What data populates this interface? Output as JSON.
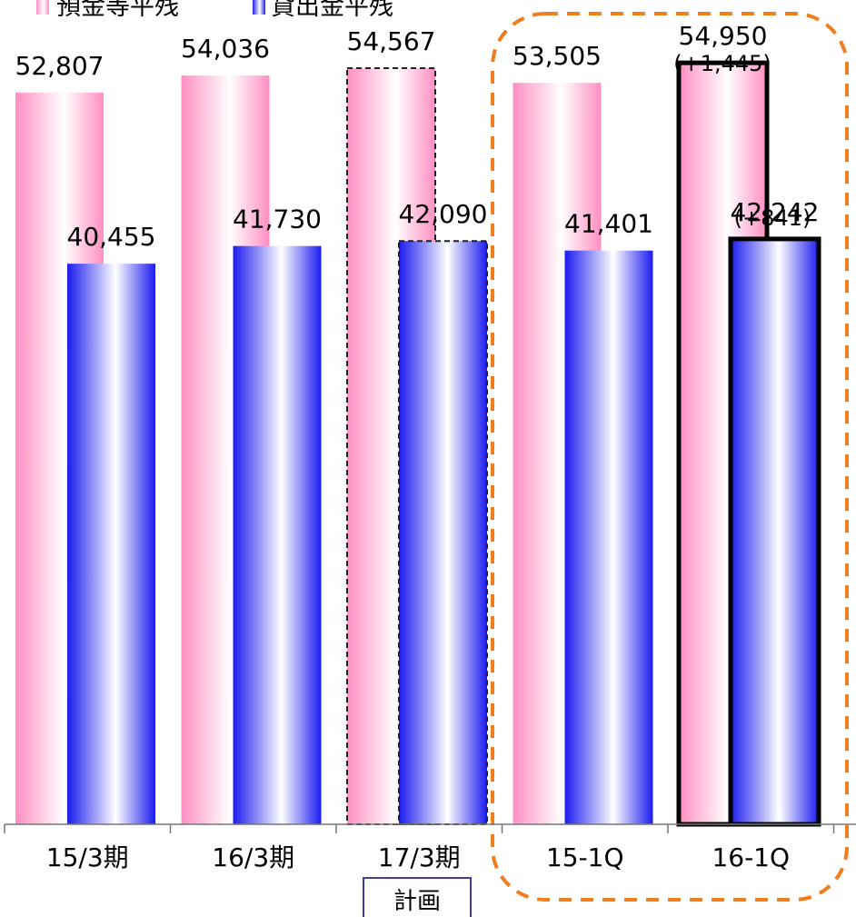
{
  "chart_data": {
    "type": "bar",
    "categories": [
      "15/3期",
      "16/3期",
      "17/3期",
      "15-1Q",
      "16-1Q"
    ],
    "series": [
      {
        "name": "預金等平残",
        "values": [
          52807,
          54036,
          54567,
          53505,
          54950
        ],
        "labels": [
          "52,807",
          "54,036",
          "54,567",
          "53,505",
          "54,950"
        ]
      },
      {
        "name": "貸出金平残",
        "values": [
          40455,
          41730,
          42090,
          41401,
          42242
        ],
        "labels": [
          "40,455",
          "41,730",
          "42,090",
          "41,401",
          "42,242"
        ]
      }
    ],
    "annotations": {
      "plan_label": "計画",
      "deposit_change": "(+1,445)",
      "loan_change": "(+841)"
    },
    "legend_position": "top-left",
    "ylim": [
      0,
      58500
    ],
    "colors": {
      "deposit": "#ff8ec2",
      "loan": "#1b1bf0",
      "highlight": "#f07d1e"
    }
  }
}
